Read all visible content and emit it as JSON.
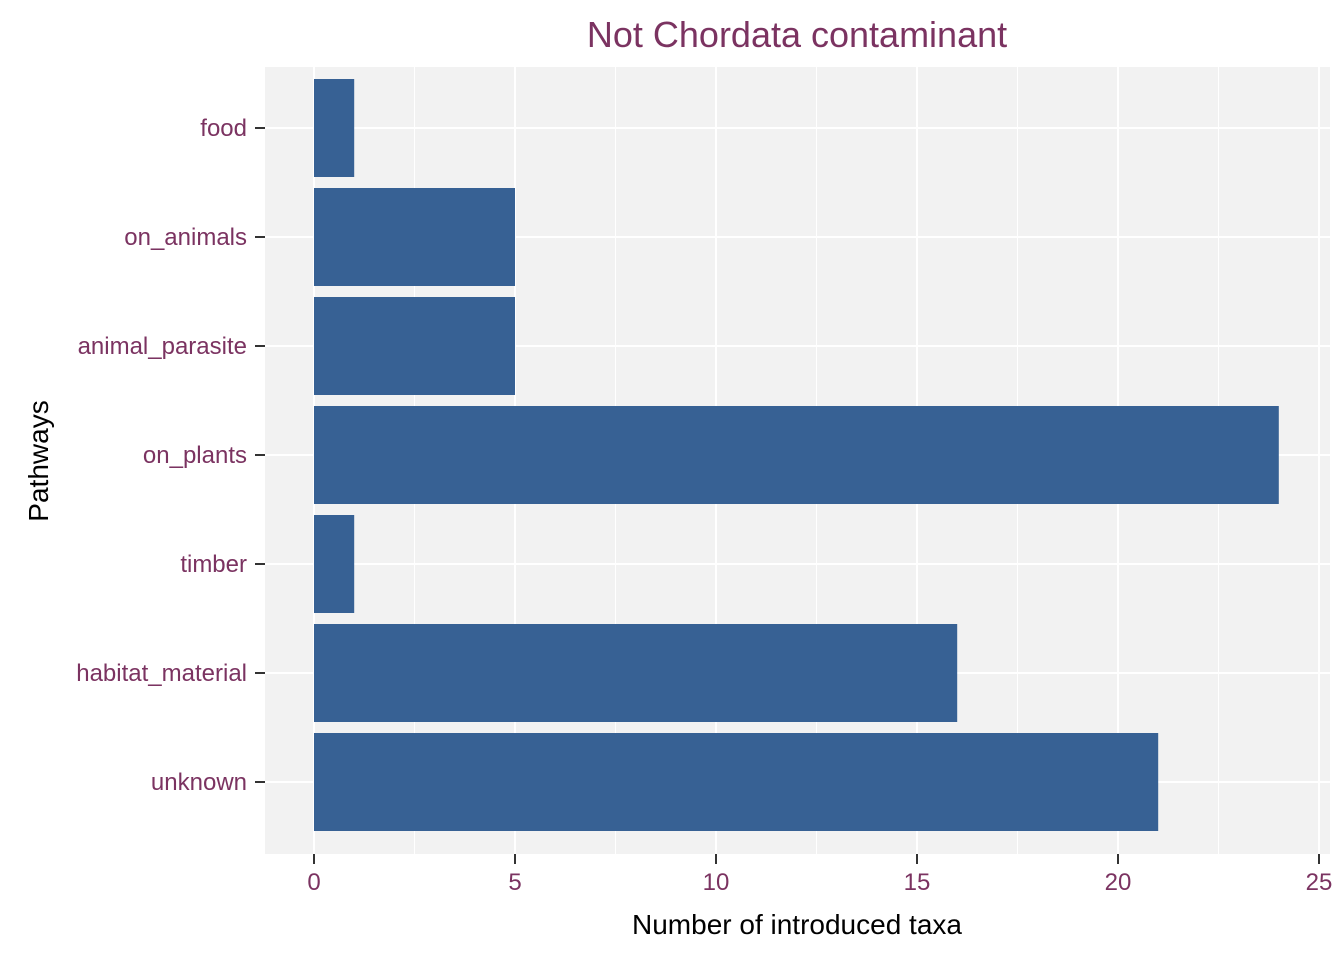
{
  "chart_data": {
    "type": "bar",
    "orientation": "horizontal",
    "title": "Not Chordata contaminant",
    "xlabel": "Number of introduced taxa",
    "ylabel": "Pathways",
    "categories": [
      "food",
      "on_animals",
      "animal_parasite",
      "on_plants",
      "timber",
      "habitat_material",
      "unknown"
    ],
    "values": [
      1,
      5,
      5,
      24,
      1,
      16,
      21
    ],
    "xlim": [
      0,
      25
    ],
    "xticks": [
      "0",
      "5",
      "10",
      "15",
      "20",
      "25"
    ],
    "grid": true,
    "legend": "none",
    "colors": {
      "bar": "#376194",
      "panel": "#f2f2f2",
      "grid": "#ffffff",
      "text_accent": "#7b3361",
      "axis_title": "#000000"
    }
  }
}
